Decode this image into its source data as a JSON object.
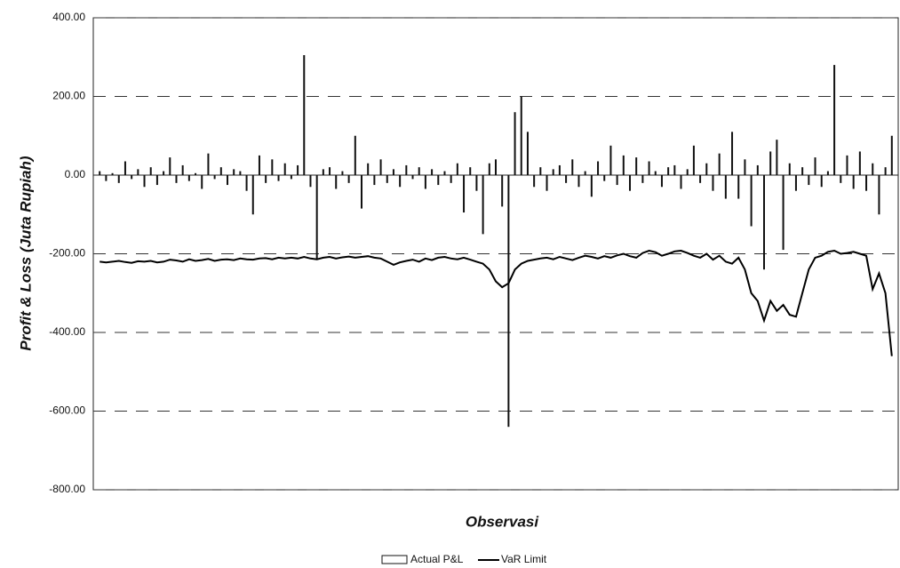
{
  "chart_data": {
    "type": "bar-line",
    "y_label": "Profit & Loss (Juta Rupiah)",
    "x_label": "Observasi",
    "x": [
      1,
      2,
      3,
      4,
      5,
      6,
      7,
      8,
      9,
      10,
      11,
      12,
      13,
      14,
      15,
      16,
      17,
      18,
      19,
      20,
      21,
      22,
      23,
      24,
      25,
      26,
      27,
      28,
      29,
      30,
      31,
      32,
      33,
      34,
      35,
      36,
      37,
      38,
      39,
      40,
      41,
      42,
      43,
      44,
      45,
      46,
      47,
      48,
      49,
      50,
      51,
      52,
      53,
      54,
      55,
      56,
      57,
      58,
      59,
      60,
      61,
      62,
      63,
      64,
      65,
      66,
      67,
      68,
      69,
      70,
      71,
      72,
      73,
      74,
      75,
      76,
      77,
      78,
      79,
      80,
      81,
      82,
      83,
      84,
      85,
      86,
      87,
      88,
      89,
      90,
      91,
      92,
      93,
      94,
      95,
      96,
      97,
      98,
      99,
      100,
      101,
      102,
      103,
      104,
      105,
      106,
      107,
      108,
      109,
      110,
      111,
      112,
      113,
      114,
      115,
      116,
      117,
      118,
      119,
      120,
      121,
      122,
      123,
      124,
      125
    ],
    "xlim": [
      0,
      126
    ],
    "ylim": [
      -800,
      400
    ],
    "yticks": [
      {
        "value": 400,
        "label": "400.00"
      },
      {
        "value": 200,
        "label": "200.00"
      },
      {
        "value": 0,
        "label": "0.00"
      },
      {
        "value": -200,
        "label": "-200.00"
      },
      {
        "value": -400,
        "label": "-400.00"
      },
      {
        "value": -600,
        "label": "-600.00"
      },
      {
        "value": -800,
        "label": "-800.00"
      }
    ],
    "grid": true,
    "series": [
      {
        "name": "Actual P&L",
        "type": "bar",
        "color": "#111111",
        "values": [
          10,
          -15,
          5,
          -20,
          35,
          -10,
          15,
          -30,
          20,
          -25,
          10,
          45,
          -20,
          25,
          -15,
          5,
          -35,
          55,
          -10,
          20,
          -25,
          15,
          10,
          -40,
          -100,
          50,
          -20,
          40,
          -15,
          30,
          -10,
          25,
          305,
          -30,
          -215,
          15,
          20,
          -35,
          10,
          -20,
          100,
          -85,
          30,
          -25,
          40,
          -20,
          15,
          -30,
          25,
          -10,
          20,
          -35,
          15,
          -25,
          10,
          -20,
          30,
          -95,
          20,
          -40,
          -150,
          30,
          40,
          -80,
          -640,
          160,
          200,
          110,
          -30,
          20,
          -40,
          15,
          25,
          -20,
          40,
          -30,
          10,
          -55,
          35,
          -15,
          75,
          -25,
          50,
          -40,
          45,
          -20,
          35,
          10,
          -30,
          20,
          25,
          -35,
          15,
          75,
          -20,
          30,
          -40,
          55,
          -60,
          110,
          -60,
          40,
          -130,
          25,
          -240,
          60,
          90,
          -190,
          30,
          -40,
          20,
          -25,
          45,
          -30,
          10,
          280,
          -20,
          50,
          -35,
          60,
          -40,
          30,
          -100,
          20,
          100
        ]
      },
      {
        "name": "VaR Limit",
        "type": "line",
        "color": "#000000",
        "values": [
          -220,
          -222,
          -220,
          -218,
          -221,
          -223,
          -219,
          -220,
          -218,
          -222,
          -220,
          -215,
          -217,
          -220,
          -214,
          -218,
          -216,
          -213,
          -218,
          -215,
          -214,
          -216,
          -212,
          -214,
          -215,
          -212,
          -211,
          -214,
          -210,
          -212,
          -210,
          -212,
          -208,
          -212,
          -214,
          -210,
          -208,
          -212,
          -209,
          -207,
          -210,
          -208,
          -206,
          -210,
          -212,
          -220,
          -228,
          -222,
          -218,
          -215,
          -220,
          -212,
          -216,
          -210,
          -208,
          -212,
          -214,
          -210,
          -215,
          -220,
          -225,
          -240,
          -270,
          -285,
          -275,
          -240,
          -225,
          -218,
          -215,
          -212,
          -210,
          -214,
          -208,
          -212,
          -216,
          -210,
          -205,
          -208,
          -212,
          -206,
          -210,
          -204,
          -200,
          -206,
          -210,
          -198,
          -192,
          -196,
          -205,
          -200,
          -194,
          -192,
          -198,
          -205,
          -210,
          -200,
          -215,
          -205,
          -220,
          -225,
          -210,
          -240,
          -300,
          -320,
          -370,
          -320,
          -345,
          -330,
          -355,
          -360,
          -300,
          -240,
          -210,
          -205,
          -195,
          -192,
          -200,
          -198,
          -195,
          -200,
          -205,
          -290,
          -250,
          -300,
          -460
        ]
      }
    ]
  }
}
